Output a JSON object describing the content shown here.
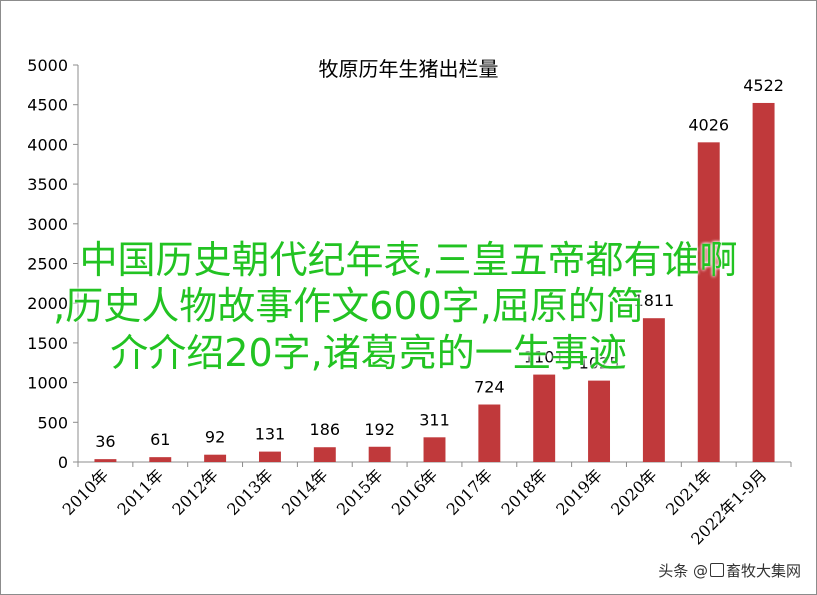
{
  "chart_data": {
    "type": "bar",
    "title": "牧原历年生猪出栏量",
    "xlabel": "",
    "ylabel": "",
    "categories": [
      "2010年",
      "2011年",
      "2012年",
      "2013年",
      "2014年",
      "2015年",
      "2016年",
      "2017年",
      "2018年",
      "2019年",
      "2020年",
      "2021年",
      "2022年1-9月"
    ],
    "values": [
      36,
      61,
      92,
      131,
      186,
      192,
      311,
      724,
      1101,
      1025,
      1811,
      4026,
      4522
    ],
    "value_labels": [
      "36",
      "61",
      "92",
      "131",
      "186",
      "192",
      "311",
      "724",
      "1101",
      "1025",
      "1811",
      "4026",
      "4522"
    ],
    "ylim": [
      0,
      5000
    ],
    "yticks": [
      0,
      500,
      1000,
      1500,
      2000,
      2500,
      3000,
      3500,
      4000,
      4500,
      5000
    ],
    "grid": false,
    "legend": "none",
    "bar_color": "#c0393b"
  },
  "overlay": {
    "line1": "中国历史朝代纪年表,三皇五帝都有谁啊",
    "line2": ",历史人物故事作文600字,屈原的简",
    "line3": "介介绍20字,诸葛亮的一生事迹",
    "color": "#22c322"
  },
  "watermark": {
    "prefix": "头条 @",
    "suffix": "畜牧大集网"
  }
}
